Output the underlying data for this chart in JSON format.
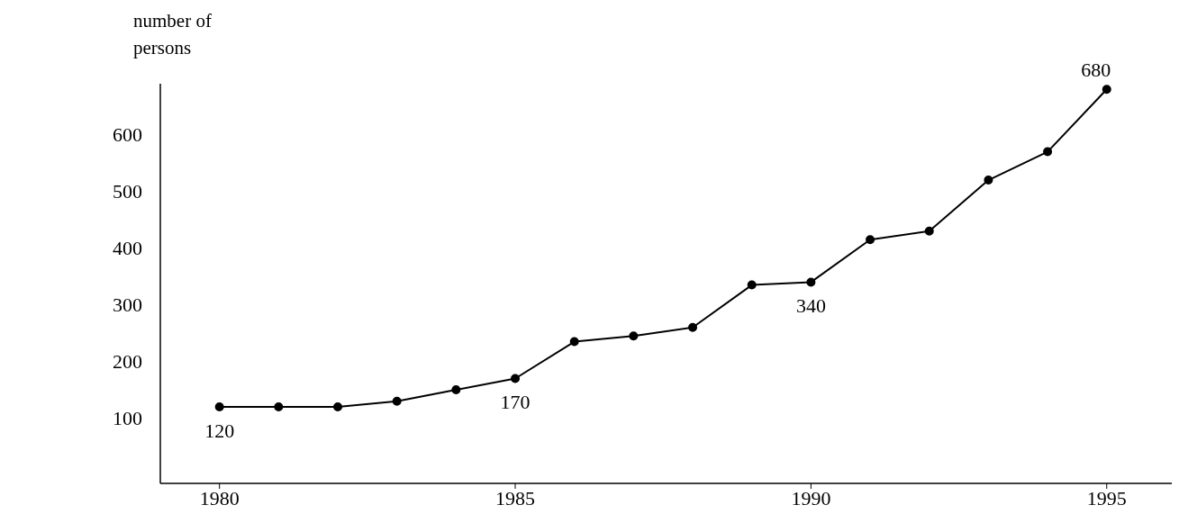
{
  "chart_data": {
    "type": "line",
    "ylabel": "number of persons",
    "x": [
      1980,
      1981,
      1982,
      1983,
      1984,
      1985,
      1986,
      1987,
      1988,
      1989,
      1990,
      1991,
      1992,
      1993,
      1994,
      1995
    ],
    "series": [
      {
        "color": "#000000",
        "values": [
          120,
          120,
          120,
          130,
          150,
          170,
          235,
          245,
          260,
          335,
          340,
          415,
          430,
          520,
          570,
          680
        ],
        "value_labels": [
          "120",
          null,
          null,
          null,
          null,
          "170",
          null,
          null,
          null,
          null,
          "340",
          null,
          null,
          null,
          null,
          "680"
        ]
      }
    ],
    "xlim": [
      1979,
      1996.1
    ],
    "xticks": [
      1980,
      1985,
      1990,
      1995
    ],
    "ylim": [
      -15,
      690
    ],
    "yticks": [
      100,
      200,
      300,
      400,
      500,
      600
    ],
    "marker": "circle",
    "line_style": "solid"
  }
}
